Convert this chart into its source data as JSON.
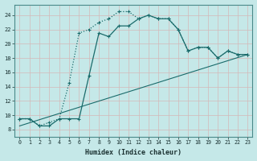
{
  "xlabel": "Humidex (Indice chaleur)",
  "background_color": "#c5e8e8",
  "grid_color": "#aed4d4",
  "line_color": "#1a6b6b",
  "xlim": [
    -0.5,
    23.5
  ],
  "ylim": [
    7,
    25.5
  ],
  "xticks": [
    0,
    1,
    2,
    3,
    4,
    5,
    6,
    7,
    8,
    9,
    10,
    11,
    12,
    13,
    14,
    15,
    16,
    17,
    18,
    19,
    20,
    21,
    22,
    23
  ],
  "yticks": [
    8,
    10,
    12,
    14,
    16,
    18,
    20,
    22,
    24
  ],
  "line1_x": [
    0,
    1,
    2,
    3,
    4,
    5,
    6,
    7,
    8,
    9,
    10,
    11,
    12,
    13,
    14,
    15,
    16,
    17,
    18,
    19,
    20,
    21,
    22,
    23
  ],
  "line1_y": [
    9.5,
    9.5,
    8.5,
    9.0,
    9.5,
    14.5,
    21.5,
    22.0,
    23.0,
    23.5,
    24.5,
    24.5,
    23.5,
    24.0,
    23.5,
    23.5,
    22.0,
    19.0,
    19.5,
    19.5,
    18.0,
    19.0,
    18.5,
    18.5
  ],
  "line2_x": [
    0,
    1,
    2,
    3,
    4,
    5,
    6,
    7,
    8,
    9,
    10,
    11,
    12,
    13,
    14,
    15,
    16,
    17,
    18,
    19,
    20,
    21,
    22,
    23
  ],
  "line2_y": [
    9.5,
    9.5,
    8.5,
    8.5,
    9.5,
    9.5,
    9.5,
    15.5,
    21.5,
    21.0,
    22.5,
    22.5,
    23.5,
    24.0,
    23.5,
    23.5,
    22.0,
    19.0,
    19.5,
    19.5,
    18.0,
    19.0,
    18.5,
    18.5
  ],
  "line3_x": [
    0,
    23
  ],
  "line3_y": [
    8.5,
    18.5
  ]
}
